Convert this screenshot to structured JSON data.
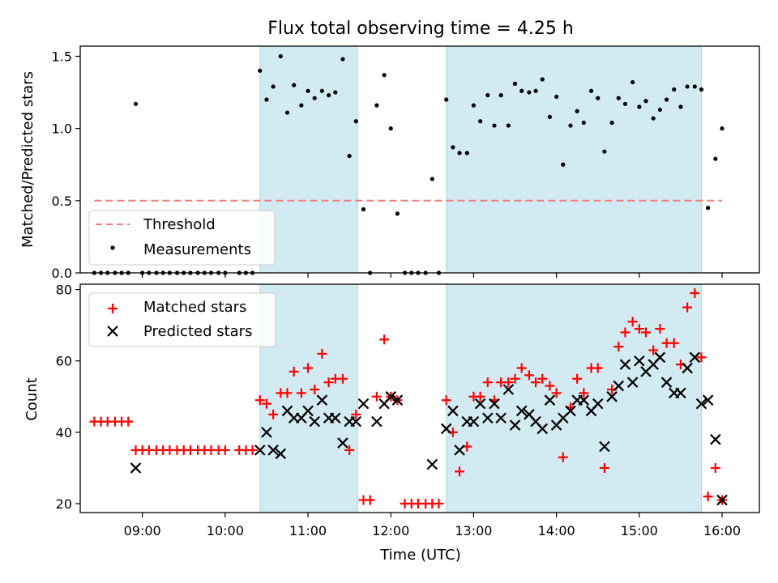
{
  "chart_data": [
    {
      "type": "scatter",
      "title": "Flux total observing time = 4.25 h",
      "xlabel": "",
      "ylabel": "Matched/Predicted stars",
      "xlim": [
        8.25,
        16.45
      ],
      "ylim": [
        0.0,
        1.57
      ],
      "yticks": [
        0.0,
        0.5,
        1.0,
        1.5
      ],
      "ytick_labels": [
        "0.0",
        "0.5",
        "1.0",
        "1.5"
      ],
      "shaded_intervals": [
        [
          10.42,
          11.6
        ],
        [
          12.67,
          15.75
        ]
      ],
      "shade_color": "#add8e6",
      "threshold": {
        "label": "Threshold",
        "value": 0.5,
        "x_range": [
          8.42,
          16.0
        ],
        "color": "#f08080"
      },
      "legend": {
        "location": "lower-left",
        "entries": [
          "Threshold",
          "Measurements"
        ]
      },
      "series": [
        {
          "name": "Measurements",
          "marker": "dot",
          "color": "#000000",
          "points": [
            [
              8.42,
              0
            ],
            [
              8.5,
              0
            ],
            [
              8.58,
              0
            ],
            [
              8.67,
              0
            ],
            [
              8.75,
              0
            ],
            [
              8.83,
              0
            ],
            [
              8.92,
              1.17
            ],
            [
              9.0,
              0
            ],
            [
              9.08,
              0
            ],
            [
              9.17,
              0
            ],
            [
              9.25,
              0
            ],
            [
              9.33,
              0
            ],
            [
              9.42,
              0
            ],
            [
              9.5,
              0
            ],
            [
              9.58,
              0
            ],
            [
              9.67,
              0
            ],
            [
              9.75,
              0
            ],
            [
              9.83,
              0
            ],
            [
              9.92,
              0
            ],
            [
              10.0,
              0
            ],
            [
              10.17,
              0
            ],
            [
              10.25,
              0
            ],
            [
              10.33,
              0
            ],
            [
              10.42,
              1.4
            ],
            [
              10.5,
              1.2
            ],
            [
              10.58,
              1.29
            ],
            [
              10.67,
              1.5
            ],
            [
              10.75,
              1.11
            ],
            [
              10.83,
              1.3
            ],
            [
              10.92,
              1.16
            ],
            [
              11.0,
              1.26
            ],
            [
              11.08,
              1.21
            ],
            [
              11.17,
              1.26
            ],
            [
              11.25,
              1.23
            ],
            [
              11.33,
              1.25
            ],
            [
              11.42,
              1.48
            ],
            [
              11.5,
              0.81
            ],
            [
              11.58,
              1.05
            ],
            [
              11.67,
              0.44
            ],
            [
              11.75,
              0
            ],
            [
              11.83,
              1.16
            ],
            [
              11.92,
              1.37
            ],
            [
              12.0,
              1.0
            ],
            [
              12.08,
              0.41
            ],
            [
              12.17,
              0
            ],
            [
              12.25,
              0
            ],
            [
              12.33,
              0
            ],
            [
              12.42,
              0
            ],
            [
              12.5,
              0.65
            ],
            [
              12.58,
              0
            ],
            [
              12.67,
              1.2
            ],
            [
              12.75,
              0.87
            ],
            [
              12.83,
              0.83
            ],
            [
              12.92,
              0.83
            ],
            [
              13.0,
              1.16
            ],
            [
              13.08,
              1.05
            ],
            [
              13.17,
              1.23
            ],
            [
              13.25,
              1.02
            ],
            [
              13.33,
              1.23
            ],
            [
              13.42,
              1.02
            ],
            [
              13.5,
              1.31
            ],
            [
              13.58,
              1.26
            ],
            [
              13.67,
              1.25
            ],
            [
              13.75,
              1.26
            ],
            [
              13.83,
              1.34
            ],
            [
              13.92,
              1.08
            ],
            [
              14.0,
              1.22
            ],
            [
              14.08,
              0.75
            ],
            [
              14.17,
              1.02
            ],
            [
              14.25,
              1.12
            ],
            [
              14.33,
              1.04
            ],
            [
              14.42,
              1.26
            ],
            [
              14.5,
              1.21
            ],
            [
              14.58,
              0.84
            ],
            [
              14.67,
              1.04
            ],
            [
              14.75,
              1.21
            ],
            [
              14.83,
              1.17
            ],
            [
              14.92,
              1.32
            ],
            [
              15.0,
              1.15
            ],
            [
              15.08,
              1.19
            ],
            [
              15.17,
              1.07
            ],
            [
              15.25,
              1.13
            ],
            [
              15.33,
              1.2
            ],
            [
              15.42,
              1.27
            ],
            [
              15.5,
              1.15
            ],
            [
              15.58,
              1.29
            ],
            [
              15.67,
              1.29
            ],
            [
              15.75,
              1.27
            ],
            [
              15.83,
              0.45
            ],
            [
              15.92,
              0.79
            ],
            [
              16.0,
              1.0
            ]
          ]
        }
      ]
    },
    {
      "type": "scatter",
      "title": "",
      "xlabel": "Time (UTC)",
      "ylabel": "Count",
      "xlim": [
        8.25,
        16.45
      ],
      "ylim": [
        17.5,
        81.5
      ],
      "yticks": [
        20,
        40,
        60,
        80
      ],
      "ytick_labels": [
        "20",
        "40",
        "60",
        "80"
      ],
      "xticks": [
        9,
        10,
        11,
        12,
        13,
        14,
        15,
        16
      ],
      "xtick_labels": [
        "09:00",
        "10:00",
        "11:00",
        "12:00",
        "13:00",
        "14:00",
        "15:00",
        "16:00"
      ],
      "shaded_intervals": [
        [
          10.42,
          11.6
        ],
        [
          12.67,
          15.75
        ]
      ],
      "shade_color": "#add8e6",
      "legend": {
        "location": "upper-left",
        "entries": [
          "Matched stars",
          "Predicted stars"
        ]
      },
      "series": [
        {
          "name": "Matched stars",
          "marker": "plus",
          "color": "#ff0000",
          "points": [
            [
              8.42,
              43
            ],
            [
              8.5,
              43
            ],
            [
              8.58,
              43
            ],
            [
              8.67,
              43
            ],
            [
              8.75,
              43
            ],
            [
              8.83,
              43
            ],
            [
              8.92,
              35
            ],
            [
              9.0,
              35
            ],
            [
              9.08,
              35
            ],
            [
              9.17,
              35
            ],
            [
              9.25,
              35
            ],
            [
              9.33,
              35
            ],
            [
              9.42,
              35
            ],
            [
              9.5,
              35
            ],
            [
              9.58,
              35
            ],
            [
              9.67,
              35
            ],
            [
              9.75,
              35
            ],
            [
              9.83,
              35
            ],
            [
              9.92,
              35
            ],
            [
              10.0,
              35
            ],
            [
              10.17,
              35
            ],
            [
              10.25,
              35
            ],
            [
              10.33,
              35
            ],
            [
              10.42,
              49
            ],
            [
              10.5,
              48
            ],
            [
              10.58,
              45
            ],
            [
              10.67,
              51
            ],
            [
              10.75,
              51
            ],
            [
              10.83,
              57
            ],
            [
              10.92,
              51
            ],
            [
              11.0,
              58
            ],
            [
              11.08,
              52
            ],
            [
              11.17,
              62
            ],
            [
              11.25,
              54
            ],
            [
              11.33,
              55
            ],
            [
              11.42,
              55
            ],
            [
              11.5,
              35
            ],
            [
              11.58,
              45
            ],
            [
              11.67,
              21
            ],
            [
              11.75,
              21
            ],
            [
              11.83,
              50
            ],
            [
              11.92,
              66
            ],
            [
              12.0,
              50
            ],
            [
              12.08,
              49
            ],
            [
              12.17,
              20
            ],
            [
              12.25,
              20
            ],
            [
              12.33,
              20
            ],
            [
              12.42,
              20
            ],
            [
              12.5,
              20
            ],
            [
              12.58,
              20
            ],
            [
              12.67,
              49
            ],
            [
              12.75,
              40
            ],
            [
              12.83,
              29
            ],
            [
              12.92,
              36
            ],
            [
              13.0,
              50
            ],
            [
              13.08,
              50
            ],
            [
              13.17,
              54
            ],
            [
              13.25,
              49
            ],
            [
              13.33,
              54
            ],
            [
              13.42,
              54
            ],
            [
              13.5,
              55
            ],
            [
              13.58,
              58
            ],
            [
              13.67,
              56
            ],
            [
              13.75,
              54
            ],
            [
              13.83,
              55
            ],
            [
              13.92,
              53
            ],
            [
              14.0,
              51
            ],
            [
              14.08,
              33
            ],
            [
              14.17,
              47
            ],
            [
              14.25,
              55
            ],
            [
              14.33,
              51
            ],
            [
              14.42,
              58
            ],
            [
              14.5,
              58
            ],
            [
              14.58,
              30
            ],
            [
              14.67,
              52
            ],
            [
              14.75,
              64
            ],
            [
              14.83,
              68
            ],
            [
              14.92,
              71
            ],
            [
              15.0,
              69
            ],
            [
              15.08,
              68
            ],
            [
              15.17,
              63
            ],
            [
              15.25,
              69
            ],
            [
              15.33,
              65
            ],
            [
              15.42,
              65
            ],
            [
              15.5,
              59
            ],
            [
              15.58,
              75
            ],
            [
              15.67,
              79
            ],
            [
              15.75,
              61
            ],
            [
              15.83,
              22
            ],
            [
              15.92,
              30
            ],
            [
              16.0,
              21
            ]
          ]
        },
        {
          "name": "Predicted stars",
          "marker": "x",
          "color": "#000000",
          "points": [
            [
              8.92,
              30
            ],
            [
              10.42,
              35
            ],
            [
              10.5,
              40
            ],
            [
              10.58,
              35
            ],
            [
              10.67,
              34
            ],
            [
              10.75,
              46
            ],
            [
              10.83,
              44
            ],
            [
              10.92,
              44
            ],
            [
              11.0,
              46
            ],
            [
              11.08,
              43
            ],
            [
              11.17,
              49
            ],
            [
              11.25,
              44
            ],
            [
              11.33,
              44
            ],
            [
              11.42,
              37
            ],
            [
              11.5,
              43
            ],
            [
              11.58,
              43
            ],
            [
              11.67,
              48
            ],
            [
              11.83,
              43
            ],
            [
              11.92,
              48
            ],
            [
              12.0,
              50
            ],
            [
              12.08,
              49
            ],
            [
              12.5,
              31
            ],
            [
              12.67,
              41
            ],
            [
              12.75,
              46
            ],
            [
              12.83,
              35
            ],
            [
              12.92,
              43
            ],
            [
              13.0,
              43
            ],
            [
              13.08,
              48
            ],
            [
              13.17,
              44
            ],
            [
              13.25,
              48
            ],
            [
              13.33,
              44
            ],
            [
              13.42,
              52
            ],
            [
              13.5,
              42
            ],
            [
              13.58,
              46
            ],
            [
              13.67,
              45
            ],
            [
              13.75,
              43
            ],
            [
              13.83,
              41
            ],
            [
              13.92,
              49
            ],
            [
              14.0,
              42
            ],
            [
              14.08,
              44
            ],
            [
              14.17,
              46
            ],
            [
              14.25,
              49
            ],
            [
              14.33,
              49
            ],
            [
              14.42,
              46
            ],
            [
              14.5,
              48
            ],
            [
              14.58,
              36
            ],
            [
              14.67,
              50
            ],
            [
              14.75,
              53
            ],
            [
              14.83,
              59
            ],
            [
              14.92,
              54
            ],
            [
              15.0,
              60
            ],
            [
              15.08,
              57
            ],
            [
              15.17,
              59
            ],
            [
              15.25,
              61
            ],
            [
              15.33,
              54
            ],
            [
              15.42,
              51
            ],
            [
              15.5,
              51
            ],
            [
              15.58,
              58
            ],
            [
              15.67,
              61
            ],
            [
              15.75,
              48
            ],
            [
              15.83,
              49
            ],
            [
              15.92,
              38
            ],
            [
              16.0,
              21
            ]
          ]
        }
      ]
    }
  ]
}
